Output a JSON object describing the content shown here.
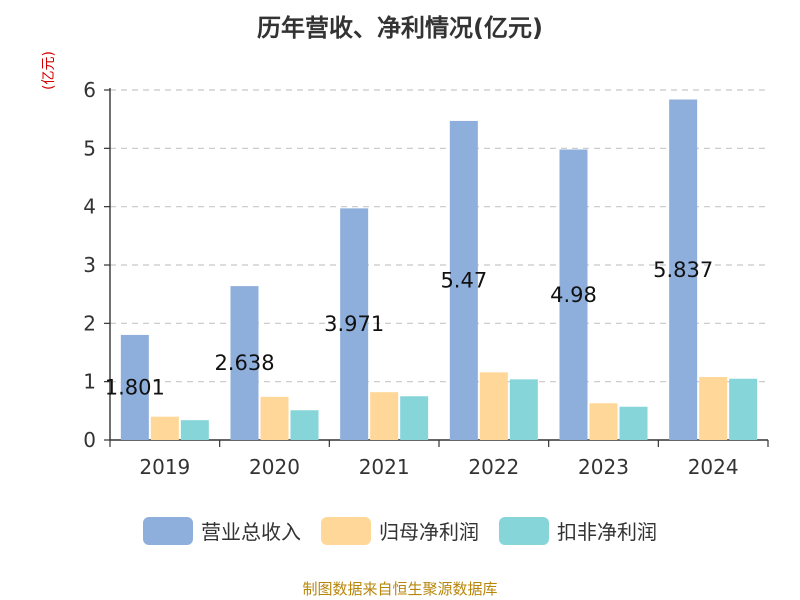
{
  "chart_data": {
    "type": "bar",
    "title": "历年营收、净利情况(亿元)",
    "ylabel": "(亿元)",
    "categories": [
      "2019",
      "2020",
      "2021",
      "2022",
      "2023",
      "2024"
    ],
    "series": [
      {
        "name": "营业总收入",
        "color": "#8eaedb",
        "values": [
          1.801,
          2.638,
          3.971,
          5.47,
          4.98,
          5.837
        ],
        "labels": [
          "1.801",
          "2.638",
          "3.971",
          "5.47",
          "4.98",
          "5.837"
        ]
      },
      {
        "name": "归母净利润",
        "color": "#ffd799",
        "values": [
          0.4,
          0.74,
          0.82,
          1.16,
          0.63,
          1.08
        ]
      },
      {
        "name": "扣非净利润",
        "color": "#86d6d9",
        "values": [
          0.34,
          0.51,
          0.75,
          1.04,
          0.57,
          1.05
        ]
      }
    ],
    "ylim": [
      0,
      6
    ],
    "yticks": [
      "0",
      "1",
      "2",
      "3",
      "4",
      "5",
      "6"
    ],
    "grid": true,
    "legend": "bottom"
  },
  "source": "制图数据来自恒生聚源数据库"
}
